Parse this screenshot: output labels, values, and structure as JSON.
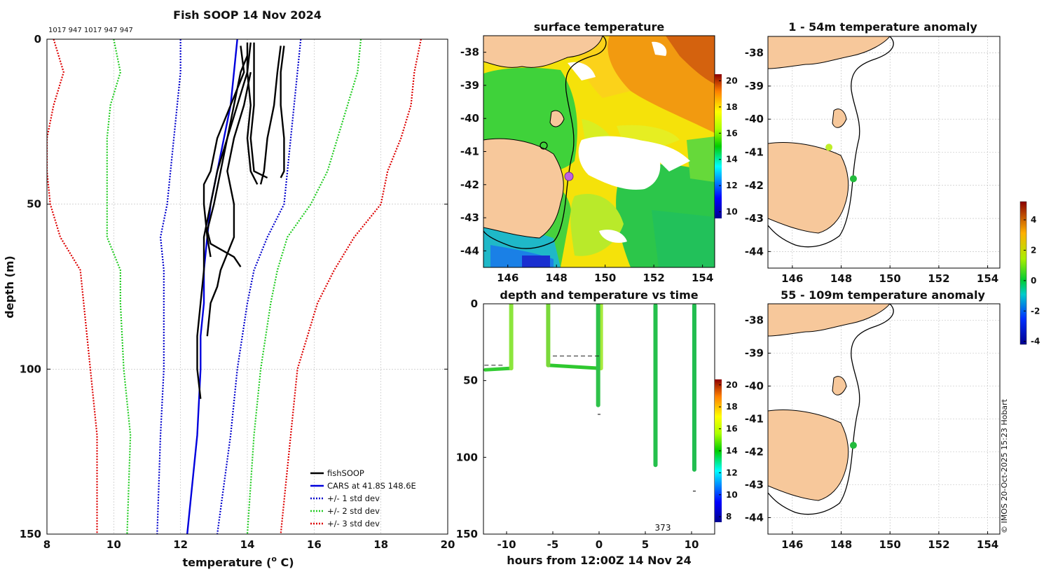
{
  "figure": {
    "credit": "© IMOS 20-Oct-2025 15:23 Hobart",
    "colors": {
      "fish": "#000000",
      "cars": "#0000dd",
      "sd1": "#0000cc",
      "sd2": "#22cc22",
      "sd3": "#dd0000",
      "land": "#f7c89b"
    }
  },
  "chart_data": [
    {
      "id": "profile",
      "type": "line",
      "title": "Fish SOOP 14 Nov 2024",
      "header_text": "1017 947 1017 947 947",
      "xlabel": "temperature (",
      "xlabel_sup": "o",
      "xlabel_end": " C)",
      "ylabel": "depth (m)",
      "xlim": [
        8,
        20
      ],
      "ylim": [
        0,
        150
      ],
      "xticks": [
        8,
        10,
        12,
        14,
        16,
        18,
        20
      ],
      "yticks": [
        0,
        50,
        100,
        150
      ],
      "legend": [
        "fishSOOP",
        "CARS at 41.8S 148.6E",
        "+/- 1 std dev",
        "+/- 2 std dev",
        "+/- 3 std dev"
      ],
      "series": [
        {
          "name": "CARS at 41.8S 148.6E",
          "style": "solid",
          "color": "#0000dd",
          "depth": [
            0,
            10,
            20,
            30,
            40,
            50,
            60,
            70,
            80,
            90,
            100,
            120,
            150
          ],
          "temp": [
            13.7,
            13.6,
            13.5,
            13.3,
            13.1,
            12.9,
            12.8,
            12.7,
            12.7,
            12.6,
            12.6,
            12.5,
            12.2
          ]
        },
        {
          "name": "-1 std dev",
          "style": "dotted",
          "color": "#0000cc",
          "depth": [
            0,
            10,
            20,
            30,
            40,
            50,
            60,
            70,
            80,
            100,
            120,
            150
          ],
          "temp": [
            12.0,
            12.0,
            11.9,
            11.8,
            11.7,
            11.6,
            11.4,
            11.5,
            11.5,
            11.5,
            11.4,
            11.3
          ]
        },
        {
          "name": "+1 std dev",
          "style": "dotted",
          "color": "#0000cc",
          "depth": [
            0,
            10,
            20,
            30,
            40,
            50,
            60,
            70,
            80,
            100,
            120,
            150
          ],
          "temp": [
            15.6,
            15.5,
            15.4,
            15.3,
            15.2,
            15.1,
            14.6,
            14.2,
            14.0,
            13.7,
            13.5,
            13.1
          ]
        },
        {
          "name": "-2 std dev",
          "style": "dotted",
          "color": "#22cc22",
          "depth": [
            0,
            10,
            20,
            30,
            40,
            50,
            60,
            70,
            80,
            100,
            120,
            150
          ],
          "temp": [
            10.0,
            10.2,
            9.9,
            9.8,
            9.8,
            9.8,
            9.8,
            10.2,
            10.2,
            10.3,
            10.5,
            10.4
          ]
        },
        {
          "name": "+2 std dev",
          "style": "dotted",
          "color": "#22cc22",
          "depth": [
            0,
            10,
            20,
            30,
            40,
            50,
            60,
            70,
            80,
            100,
            120,
            150
          ],
          "temp": [
            17.4,
            17.3,
            17.0,
            16.7,
            16.4,
            15.9,
            15.2,
            14.9,
            14.7,
            14.4,
            14.2,
            14.0
          ]
        },
        {
          "name": "-3 std dev",
          "style": "dotted",
          "color": "#dd0000",
          "depth": [
            0,
            10,
            20,
            30,
            40,
            50,
            60,
            70,
            80,
            100,
            120,
            150
          ],
          "temp": [
            8.2,
            8.5,
            8.2,
            8.0,
            8.0,
            8.1,
            8.4,
            9.0,
            9.1,
            9.3,
            9.5,
            9.5
          ]
        },
        {
          "name": "+3 std dev",
          "style": "dotted",
          "color": "#dd0000",
          "depth": [
            0,
            10,
            20,
            30,
            40,
            50,
            60,
            70,
            80,
            100,
            120,
            150
          ],
          "temp": [
            19.2,
            19.0,
            18.9,
            18.6,
            18.2,
            18.0,
            17.2,
            16.6,
            16.1,
            15.5,
            15.3,
            15.0
          ]
        },
        {
          "name": "fishSOOP",
          "style": "solid",
          "color": "#000000",
          "depth": [
            1,
            10,
            20,
            30,
            40,
            44
          ],
          "temp": [
            14.1,
            14.0,
            14.1,
            14.0,
            14.1,
            14.3
          ]
        },
        {
          "name": "fishSOOP",
          "style": "solid",
          "color": "#000000",
          "depth": [
            1,
            10,
            20,
            30,
            40,
            42
          ],
          "temp": [
            14.2,
            14.2,
            14.2,
            14.1,
            14.2,
            14.6
          ]
        },
        {
          "name": "fishSOOP",
          "style": "solid",
          "color": "#000000",
          "depth": [
            2,
            10,
            20,
            30,
            40,
            44
          ],
          "temp": [
            15.0,
            14.9,
            14.8,
            14.6,
            14.5,
            14.4
          ]
        },
        {
          "name": "fishSOOP",
          "style": "solid",
          "color": "#000000",
          "depth": [
            2,
            10,
            20,
            30,
            40,
            42
          ],
          "temp": [
            15.1,
            15.0,
            15.0,
            15.1,
            15.1,
            15.0
          ]
        },
        {
          "name": "fishSOOP",
          "style": "solid",
          "color": "#000000",
          "depth": [
            1,
            10,
            20,
            30,
            40,
            50,
            58,
            62,
            66,
            69
          ],
          "temp": [
            14.0,
            14.0,
            13.7,
            13.4,
            13.2,
            13.0,
            12.8,
            12.9,
            13.6,
            13.8
          ]
        },
        {
          "name": "fishSOOP",
          "style": "solid",
          "color": "#000000",
          "depth": [
            2,
            10,
            20,
            30,
            40,
            44,
            50,
            60,
            66
          ],
          "temp": [
            13.8,
            13.9,
            13.5,
            13.1,
            12.9,
            12.7,
            12.7,
            12.8,
            12.9
          ]
        },
        {
          "name": "fishSOOP",
          "style": "solid",
          "color": "#000000",
          "depth": [
            5,
            10,
            20,
            30,
            40,
            50,
            60,
            70,
            80,
            90,
            100,
            109
          ],
          "temp": [
            14.0,
            13.8,
            13.6,
            13.4,
            13.1,
            12.9,
            12.7,
            12.7,
            12.6,
            12.5,
            12.5,
            12.6
          ]
        },
        {
          "name": "fishSOOP",
          "style": "solid",
          "color": "#000000",
          "depth": [
            10,
            20,
            30,
            40,
            50,
            60,
            70,
            75,
            80,
            90
          ],
          "temp": [
            14.1,
            13.9,
            13.6,
            13.4,
            13.6,
            13.6,
            13.2,
            13.1,
            12.9,
            12.8
          ]
        }
      ]
    },
    {
      "id": "sst",
      "type": "heatmap",
      "title": "surface temperature",
      "xlim": [
        145,
        154.5
      ],
      "ylim": [
        -44.5,
        -37.5
      ],
      "xticks": [
        146,
        148,
        150,
        152,
        154
      ],
      "yticks": [
        -38,
        -39,
        -40,
        -41,
        -42,
        -43,
        -44
      ],
      "colorbar": {
        "min": 9.5,
        "max": 20.5,
        "ticks": [
          10,
          12,
          14,
          16,
          18,
          20
        ]
      }
    },
    {
      "id": "time",
      "type": "scatter",
      "title": "depth and temperature vs time",
      "xlabel": "hours from 12:00Z 14 Nov 24",
      "xlim": [
        -12.5,
        12.5
      ],
      "ylim": [
        0,
        150
      ],
      "xticks": [
        -10,
        -5,
        0,
        5,
        10
      ],
      "yticks": [
        0,
        50,
        100,
        150
      ],
      "annotation": "373",
      "colorbar": {
        "min": 7.5,
        "max": 20.5,
        "ticks": [
          8,
          10,
          12,
          14,
          16,
          18,
          20
        ]
      },
      "casts": [
        {
          "hour": -9.5,
          "top": 0,
          "bottom": 42,
          "color": "#8ce63c"
        },
        {
          "hour": -5.5,
          "top": 0,
          "bottom": 40,
          "color": "#7ad93a"
        },
        {
          "hour": 0.2,
          "top": 0,
          "bottom": 42,
          "color": "#a6ea3c"
        },
        {
          "hour": -0.1,
          "top": 0,
          "bottom": 66,
          "color": "#2fc24a"
        },
        {
          "hour": 6.1,
          "top": 1,
          "bottom": 105,
          "color": "#25c04c"
        },
        {
          "hour": 10.3,
          "top": 1,
          "bottom": 108,
          "color": "#22bd50"
        }
      ],
      "tracks": [
        {
          "from": -12.3,
          "to": -9.5,
          "depth0": 43,
          "depth1": 42,
          "color": "#33cc33"
        },
        {
          "from": -5.5,
          "to": 0.0,
          "depth0": 40,
          "depth1": 42,
          "color": "#2ec82f"
        }
      ],
      "dashed_lines": [
        {
          "from": -12.4,
          "to": -10.2,
          "depth": 40
        },
        {
          "from": -5.0,
          "to": 0.2,
          "depth": 34
        }
      ],
      "marks": [
        {
          "hour": 0.0,
          "depth": 72
        },
        {
          "hour": 10.3,
          "depth": 122
        }
      ]
    },
    {
      "id": "anom1",
      "type": "scatter",
      "title": "1 - 54m temperature anomaly",
      "xlim": [
        145,
        154.5
      ],
      "ylim": [
        -44.5,
        -37.5
      ],
      "xticks": [
        146,
        148,
        150,
        152,
        154
      ],
      "yticks": [
        -38,
        -39,
        -40,
        -41,
        -42,
        -43,
        -44
      ],
      "points": [
        {
          "lon": 147.5,
          "lat": -40.85,
          "color": "#bfee2a"
        },
        {
          "lon": 148.5,
          "lat": -41.8,
          "color": "#22bb3c"
        }
      ],
      "colorbar": {
        "min": -4.2,
        "max": 5.2,
        "ticks": [
          -4,
          -2,
          0,
          2,
          4
        ]
      }
    },
    {
      "id": "anom2",
      "type": "scatter",
      "title": "55 - 109m temperature anomaly",
      "xlim": [
        145,
        154.5
      ],
      "ylim": [
        -44.5,
        -37.5
      ],
      "xticks": [
        146,
        148,
        150,
        152,
        154
      ],
      "yticks": [
        -38,
        -39,
        -40,
        -41,
        -42,
        -43,
        -44
      ],
      "points": [
        {
          "lon": 148.5,
          "lat": -41.8,
          "color": "#22bb3c"
        }
      ]
    }
  ]
}
